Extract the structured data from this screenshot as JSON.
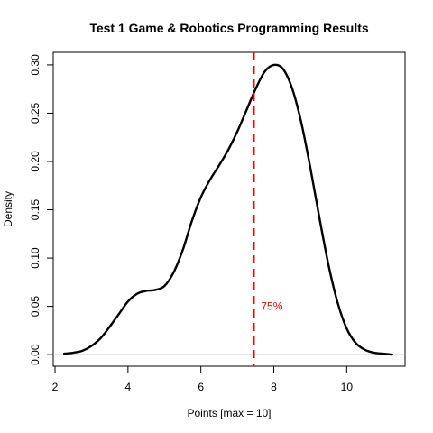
{
  "chart_data": {
    "type": "line",
    "title": "Test 1 Game & Robotics Programming Results",
    "xlabel": "Points [max = 10]",
    "ylabel": "Density",
    "xlim": [
      1.95,
      11.6
    ],
    "ylim": [
      -0.012,
      0.313
    ],
    "x_ticks": [
      "2",
      "4",
      "6",
      "8",
      "10"
    ],
    "y_ticks": [
      "0.00",
      "0.05",
      "0.10",
      "0.15",
      "0.20",
      "0.25",
      "0.30"
    ],
    "grid": false,
    "line_color": "#000000",
    "baseline_color": "#bebebe",
    "series": [
      {
        "x": [
          2.25,
          2.5,
          2.75,
          3.0,
          3.25,
          3.5,
          3.75,
          4.0,
          4.25,
          4.5,
          4.75,
          5.0,
          5.25,
          5.5,
          5.75,
          6.0,
          6.25,
          6.5,
          6.75,
          7.0,
          7.25,
          7.5,
          7.75,
          8.0,
          8.25,
          8.5,
          8.75,
          9.0,
          9.25,
          9.5,
          9.75,
          10.0,
          10.25,
          10.5,
          10.75,
          11.0,
          11.25
        ],
        "y": [
          0.001,
          0.002,
          0.004,
          0.009,
          0.017,
          0.029,
          0.042,
          0.055,
          0.063,
          0.066,
          0.067,
          0.071,
          0.085,
          0.108,
          0.138,
          0.163,
          0.181,
          0.196,
          0.212,
          0.231,
          0.253,
          0.275,
          0.293,
          0.3,
          0.296,
          0.276,
          0.241,
          0.194,
          0.142,
          0.093,
          0.054,
          0.027,
          0.012,
          0.005,
          0.002,
          0.001,
          0.0
        ]
      }
    ],
    "annotations": [
      {
        "type": "vline",
        "x": 7.45,
        "color": "#ff0000",
        "style": "dashed"
      },
      {
        "type": "text",
        "label": "75%",
        "x": 7.65,
        "y": 0.05,
        "color": "#ff0000"
      }
    ]
  }
}
